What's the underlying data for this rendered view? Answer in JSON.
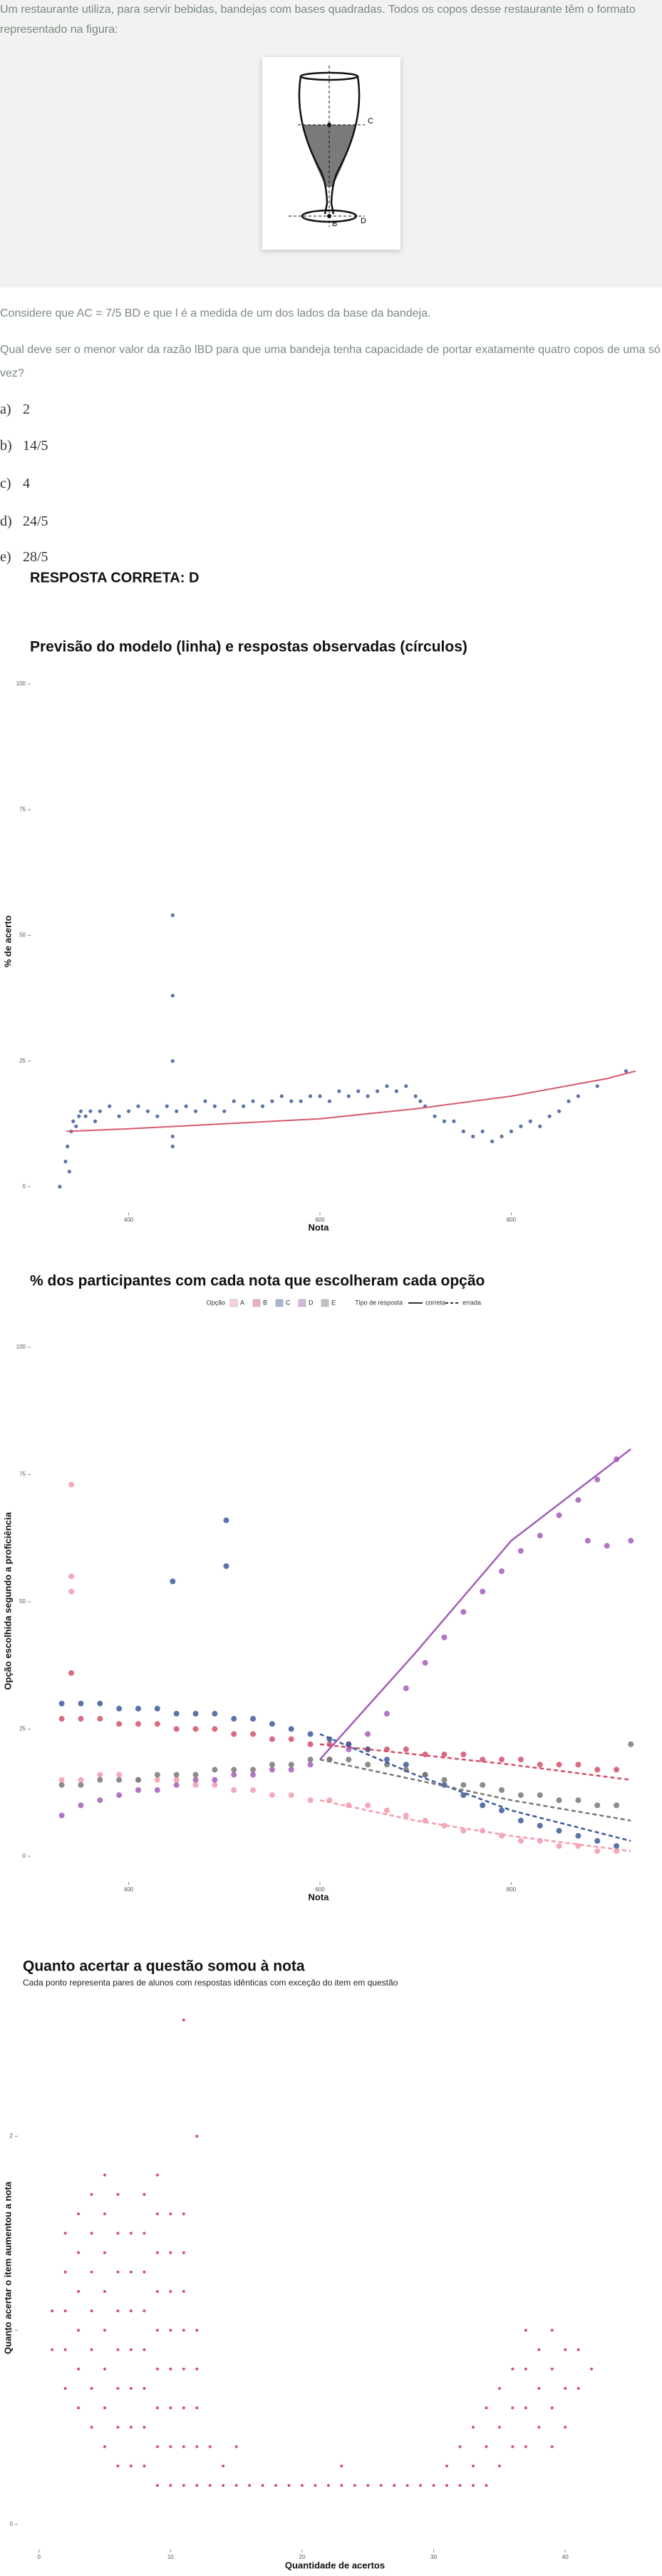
{
  "question": {
    "intro": "Um restaurante utiliza, para servir bebidas, bandejas com bases quadradas. Todos os copos desse restaurante têm o formato representado na figura:",
    "figure_labels": [
      "C",
      "B",
      "D"
    ],
    "statement": "Considere que AC = 7/5 BD e que l é a medida de um dos lados da base da bandeja.",
    "prompt": "Qual deve ser o menor valor da razão lBD para que uma bandeja tenha capacidade de portar exatamente quatro copos de uma só vez?",
    "options": [
      {
        "letter": "a)",
        "text": "2"
      },
      {
        "letter": "b)",
        "text": "14/5"
      },
      {
        "letter": "c)",
        "text": "4"
      },
      {
        "letter": "d)",
        "text": "24/5"
      },
      {
        "letter": "e)",
        "text": "28/5"
      }
    ],
    "answer": "RESPOSTA CORRETA: D"
  },
  "chart_data": [
    {
      "type": "scatter",
      "title": "Previsão do modelo (linha) e respostas observadas (círculos)",
      "x_label": "Nota",
      "y_label": "% de acerto",
      "xlim": [
        299,
        936
      ],
      "ylim": [
        -2,
        101
      ],
      "xticks": [
        400,
        600,
        800
      ],
      "yticks": [
        0,
        25,
        50,
        75,
        100
      ],
      "series": [
        {
          "type": "scatter",
          "color": "#3d5a99",
          "x": [
            328,
            334,
            336,
            338,
            340,
            342,
            345,
            348,
            350,
            355,
            360,
            365,
            370,
            380,
            390,
            400,
            410,
            420,
            430,
            440,
            446,
            446,
            446,
            446,
            446,
            450,
            460,
            470,
            480,
            490,
            500,
            510,
            520,
            530,
            540,
            550,
            560,
            570,
            580,
            590,
            600,
            610,
            620,
            630,
            640,
            650,
            660,
            670,
            680,
            690,
            700,
            705,
            710,
            720,
            730,
            740,
            750,
            760,
            770,
            780,
            790,
            800,
            810,
            820,
            830,
            840,
            850,
            860,
            870,
            890,
            920
          ],
          "values": [
            0,
            5,
            8,
            3,
            11,
            13,
            12,
            14,
            15,
            14,
            15,
            13,
            15,
            16,
            14,
            15,
            16,
            15,
            14,
            16,
            54,
            38,
            25,
            8,
            10,
            15,
            16,
            15,
            17,
            16,
            15,
            17,
            16,
            17,
            16,
            17,
            18,
            17,
            17,
            18,
            18,
            17,
            19,
            18,
            19,
            18,
            19,
            20,
            19,
            20,
            18,
            17,
            16,
            14,
            13,
            13,
            11,
            10,
            11,
            9,
            10,
            11,
            12,
            13,
            12,
            14,
            15,
            17,
            18,
            20,
            23
          ]
        },
        {
          "type": "line",
          "color": "#d65a6f",
          "x": [
            335,
            400,
            500,
            600,
            700,
            800,
            900,
            930
          ],
          "values": [
            11,
            11.5,
            12.5,
            13.5,
            15.5,
            18,
            21.5,
            23
          ]
        }
      ]
    },
    {
      "type": "scatter",
      "title": "% dos participantes com cada nota que escolheram cada opção",
      "x_label": "Nota",
      "y_label": "Opção escolhida segundo a proficiência",
      "legend_title": "Opção",
      "line_legend_title": "Tipo de resposta",
      "line_types": [
        "correta",
        "errada"
      ],
      "xlim": [
        299,
        936
      ],
      "ylim": [
        -2,
        101
      ],
      "xticks": [
        400,
        600,
        800
      ],
      "yticks": [
        0,
        25,
        50,
        75,
        100
      ],
      "x": [
        330,
        350,
        370,
        390,
        410,
        430,
        450,
        470,
        490,
        510,
        530,
        550,
        570,
        590,
        610,
        630,
        650,
        670,
        690,
        710,
        730,
        750,
        770,
        790,
        810,
        830,
        850,
        870,
        890,
        910
      ],
      "fit_x": [
        600,
        700,
        800,
        925
      ],
      "series": [
        {
          "name": "A",
          "color": "#f59aab",
          "correct": false,
          "values": [
            15,
            15,
            16,
            16,
            15,
            15,
            15,
            14,
            14,
            13,
            13,
            12,
            12,
            11,
            11,
            10,
            10,
            9,
            8,
            7,
            6,
            5,
            5,
            4,
            3,
            3,
            2,
            2,
            1,
            1
          ],
          "extra": [
            [
              340,
              73
            ],
            [
              340,
              55
            ],
            [
              340,
              52
            ]
          ],
          "fit": [
            11,
            7,
            4,
            1
          ]
        },
        {
          "name": "B",
          "color": "#d4506a",
          "correct": false,
          "values": [
            27,
            27,
            27,
            26,
            26,
            26,
            25,
            25,
            25,
            24,
            24,
            23,
            23,
            22,
            22,
            22,
            21,
            21,
            21,
            20,
            20,
            20,
            19,
            19,
            19,
            18,
            18,
            18,
            17,
            17
          ],
          "extra": [
            [
              340,
              36
            ]
          ],
          "fit": [
            22,
            20,
            18,
            15
          ]
        },
        {
          "name": "C",
          "color": "#3d5a99",
          "correct": false,
          "values": [
            30,
            30,
            30,
            29,
            29,
            29,
            28,
            28,
            28,
            27,
            27,
            26,
            25,
            24,
            23,
            22,
            21,
            19,
            18,
            16,
            14,
            12,
            10,
            9,
            7,
            6,
            5,
            4,
            3,
            2
          ],
          "extra": [
            [
              446,
              54
            ],
            [
              502,
              66
            ],
            [
              502,
              57
            ]
          ],
          "fit": [
            24,
            16,
            9,
            3
          ]
        },
        {
          "name": "D",
          "color": "#a35db8",
          "correct": true,
          "values": [
            8,
            10,
            11,
            12,
            13,
            13,
            14,
            15,
            15,
            16,
            16,
            17,
            17,
            18,
            19,
            21,
            24,
            28,
            33,
            38,
            43,
            48,
            52,
            56,
            60,
            63,
            67,
            70,
            74,
            78
          ],
          "extra": [
            [
              880,
              62
            ],
            [
              900,
              61
            ],
            [
              925,
              62
            ]
          ],
          "fit": [
            19,
            40,
            62,
            80
          ]
        },
        {
          "name": "E",
          "color": "#7b7873",
          "correct": false,
          "values": [
            14,
            14,
            15,
            15,
            15,
            16,
            16,
            16,
            17,
            17,
            17,
            18,
            18,
            19,
            19,
            19,
            18,
            18,
            17,
            16,
            15,
            14,
            14,
            13,
            12,
            12,
            11,
            11,
            10,
            10
          ],
          "extra": [
            [
              925,
              22
            ]
          ],
          "fit": [
            19,
            15,
            11,
            7
          ]
        }
      ]
    },
    {
      "type": "scatter",
      "title": "Quanto acertar a questão somou à nota",
      "subtitle": "Cada ponto representa pares de alunos com respostas idênticas com exceção do item em questão",
      "x_label": "Quantidade de acertos",
      "y_label": "Quanto acertar o item aumentou a nota",
      "xlim": [
        -1.5,
        46
      ],
      "ylim": [
        -0.05,
        2.7
      ],
      "xticks": [
        0,
        10,
        20,
        30,
        40
      ],
      "yticks": [
        0,
        1,
        2
      ],
      "color": "#d4506a",
      "points": [
        [
          1,
          0.9
        ],
        [
          1,
          1.1
        ],
        [
          2,
          0.7
        ],
        [
          2,
          0.9
        ],
        [
          2,
          1.1
        ],
        [
          2,
          1.3
        ],
        [
          2,
          1.5
        ],
        [
          3,
          0.6
        ],
        [
          3,
          0.8
        ],
        [
          3,
          1
        ],
        [
          3,
          1.2
        ],
        [
          3,
          1.4
        ],
        [
          3,
          1.6
        ],
        [
          4,
          0.5
        ],
        [
          4,
          0.7
        ],
        [
          4,
          0.9
        ],
        [
          4,
          1.1
        ],
        [
          4,
          1.3
        ],
        [
          4,
          1.5
        ],
        [
          4,
          1.7
        ],
        [
          5,
          0.4
        ],
        [
          5,
          0.6
        ],
        [
          5,
          0.8
        ],
        [
          5,
          1
        ],
        [
          5,
          1.2
        ],
        [
          5,
          1.4
        ],
        [
          5,
          1.6
        ],
        [
          5,
          1.8
        ],
        [
          6,
          0.3
        ],
        [
          6,
          0.5
        ],
        [
          6,
          0.7
        ],
        [
          6,
          0.9
        ],
        [
          6,
          1.1
        ],
        [
          6,
          1.3
        ],
        [
          6,
          1.5
        ],
        [
          6,
          1.7
        ],
        [
          7,
          0.3
        ],
        [
          7,
          0.5
        ],
        [
          7,
          0.7
        ],
        [
          7,
          0.9
        ],
        [
          7,
          1.1
        ],
        [
          7,
          1.3
        ],
        [
          7,
          1.5
        ],
        [
          8,
          0.3
        ],
        [
          8,
          0.5
        ],
        [
          8,
          0.7
        ],
        [
          8,
          0.9
        ],
        [
          8,
          1.1
        ],
        [
          8,
          1.3
        ],
        [
          8,
          1.5
        ],
        [
          8,
          1.7
        ],
        [
          9,
          0.2
        ],
        [
          9,
          0.4
        ],
        [
          9,
          0.6
        ],
        [
          9,
          0.8
        ],
        [
          9,
          1
        ],
        [
          9,
          1.2
        ],
        [
          9,
          1.4
        ],
        [
          9,
          1.6
        ],
        [
          9,
          1.8
        ],
        [
          10,
          0.2
        ],
        [
          10,
          0.4
        ],
        [
          10,
          0.6
        ],
        [
          10,
          0.8
        ],
        [
          10,
          1
        ],
        [
          10,
          1.2
        ],
        [
          10,
          1.4
        ],
        [
          10,
          1.6
        ],
        [
          11,
          0.2
        ],
        [
          11,
          0.4
        ],
        [
          11,
          0.6
        ],
        [
          11,
          0.8
        ],
        [
          11,
          1
        ],
        [
          11,
          1.2
        ],
        [
          11,
          1.4
        ],
        [
          11,
          1.6
        ],
        [
          11,
          2.6
        ],
        [
          12,
          0.2
        ],
        [
          12,
          0.4
        ],
        [
          12,
          0.6
        ],
        [
          12,
          0.8
        ],
        [
          12,
          1
        ],
        [
          12,
          2
        ],
        [
          13,
          0.2
        ],
        [
          13,
          0.4
        ],
        [
          14,
          0.2
        ],
        [
          14,
          0.3
        ],
        [
          15,
          0.2
        ],
        [
          15,
          0.4
        ],
        [
          16,
          0.2
        ],
        [
          17,
          0.2
        ],
        [
          18,
          0.2
        ],
        [
          19,
          0.2
        ],
        [
          20,
          0.2
        ],
        [
          21,
          0.2
        ],
        [
          22,
          0.2
        ],
        [
          23,
          0.2
        ],
        [
          23,
          0.3
        ],
        [
          24,
          0.2
        ],
        [
          25,
          0.2
        ],
        [
          26,
          0.2
        ],
        [
          27,
          0.2
        ],
        [
          28,
          0.2
        ],
        [
          29,
          0.2
        ],
        [
          30,
          0.2
        ],
        [
          31,
          0.2
        ],
        [
          31,
          0.3
        ],
        [
          32,
          0.2
        ],
        [
          32,
          0.4
        ],
        [
          33,
          0.2
        ],
        [
          33,
          0.3
        ],
        [
          33,
          0.5
        ],
        [
          34,
          0.2
        ],
        [
          34,
          0.4
        ],
        [
          34,
          0.6
        ],
        [
          35,
          0.3
        ],
        [
          35,
          0.5
        ],
        [
          35,
          0.7
        ],
        [
          36,
          0.4
        ],
        [
          36,
          0.6
        ],
        [
          36,
          0.8
        ],
        [
          37,
          0.4
        ],
        [
          37,
          0.6
        ],
        [
          37,
          0.8
        ],
        [
          37,
          1
        ],
        [
          38,
          0.5
        ],
        [
          38,
          0.7
        ],
        [
          38,
          0.9
        ],
        [
          39,
          0.4
        ],
        [
          39,
          0.6
        ],
        [
          39,
          0.8
        ],
        [
          39,
          1
        ],
        [
          40,
          0.5
        ],
        [
          40,
          0.7
        ],
        [
          40,
          0.9
        ],
        [
          41,
          0.7
        ],
        [
          41,
          0.9
        ],
        [
          42,
          0.8
        ]
      ]
    }
  ]
}
